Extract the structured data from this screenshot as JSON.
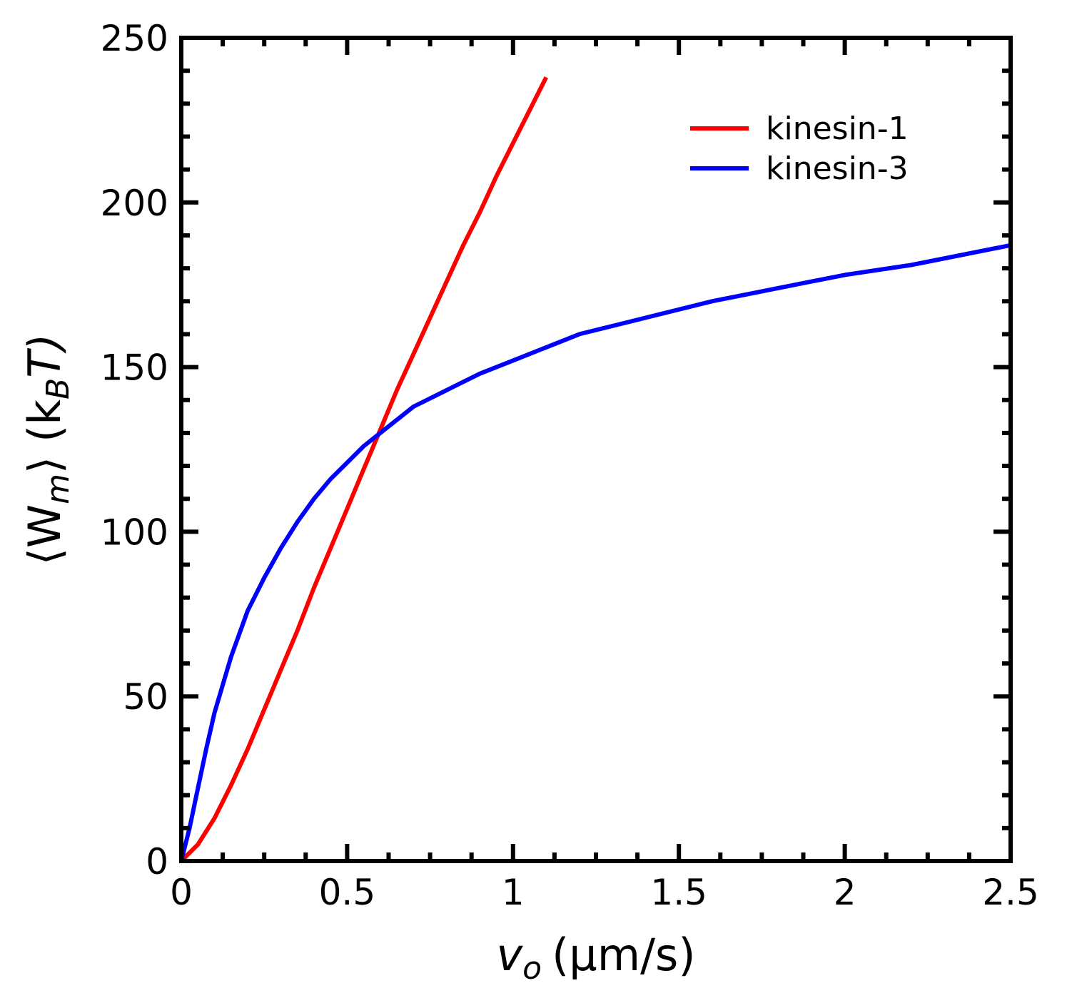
{
  "chart_data": {
    "type": "line",
    "xlabel": {
      "main": "v",
      "sub": "o",
      "unit": "(μm/s)"
    },
    "ylabel": {
      "main": "⟨W",
      "sub": "m",
      "close": "⟩ (k",
      "sub2": "B",
      "tail": "T)"
    },
    "xlim": [
      0,
      2.5
    ],
    "ylim": [
      0,
      250
    ],
    "xticks": [
      0,
      0.5,
      1,
      1.5,
      2,
      2.5
    ],
    "xtick_labels": [
      "0",
      "0.5",
      "1",
      "1.5",
      "2",
      "2.5"
    ],
    "yticks": [
      0,
      50,
      100,
      150,
      200,
      250
    ],
    "ytick_labels": [
      "0",
      "50",
      "100",
      "150",
      "200",
      "250"
    ],
    "x_minor_step": 0.125,
    "y_minor_step": 10,
    "legend": "top-right",
    "series": [
      {
        "name": "kinesin-1",
        "color": "#ff0000",
        "x": [
          0,
          0.05,
          0.1,
          0.15,
          0.2,
          0.25,
          0.3,
          0.35,
          0.4,
          0.45,
          0.5,
          0.55,
          0.6,
          0.65,
          0.7,
          0.75,
          0.8,
          0.85,
          0.9,
          0.95,
          1.0,
          1.05,
          1.1
        ],
        "y": [
          0,
          5,
          13,
          23,
          34,
          46,
          58,
          70,
          83,
          95,
          107,
          119,
          131,
          143,
          154,
          165,
          176,
          187,
          197,
          208,
          218,
          228,
          238
        ]
      },
      {
        "name": "kinesin-3",
        "color": "#0000ff",
        "x": [
          0,
          0.025,
          0.05,
          0.075,
          0.1,
          0.15,
          0.2,
          0.25,
          0.3,
          0.35,
          0.4,
          0.45,
          0.5,
          0.55,
          0.6,
          0.65,
          0.7,
          0.8,
          0.9,
          1.0,
          1.1,
          1.2,
          1.4,
          1.6,
          1.8,
          2.0,
          2.2,
          2.4,
          2.5
        ],
        "y": [
          0,
          10,
          22,
          34,
          45,
          62,
          76,
          86,
          95,
          103,
          110,
          116,
          121,
          126,
          130,
          134,
          138,
          143,
          148,
          152,
          156,
          160,
          165,
          170,
          174,
          178,
          181,
          185,
          187
        ]
      }
    ]
  }
}
